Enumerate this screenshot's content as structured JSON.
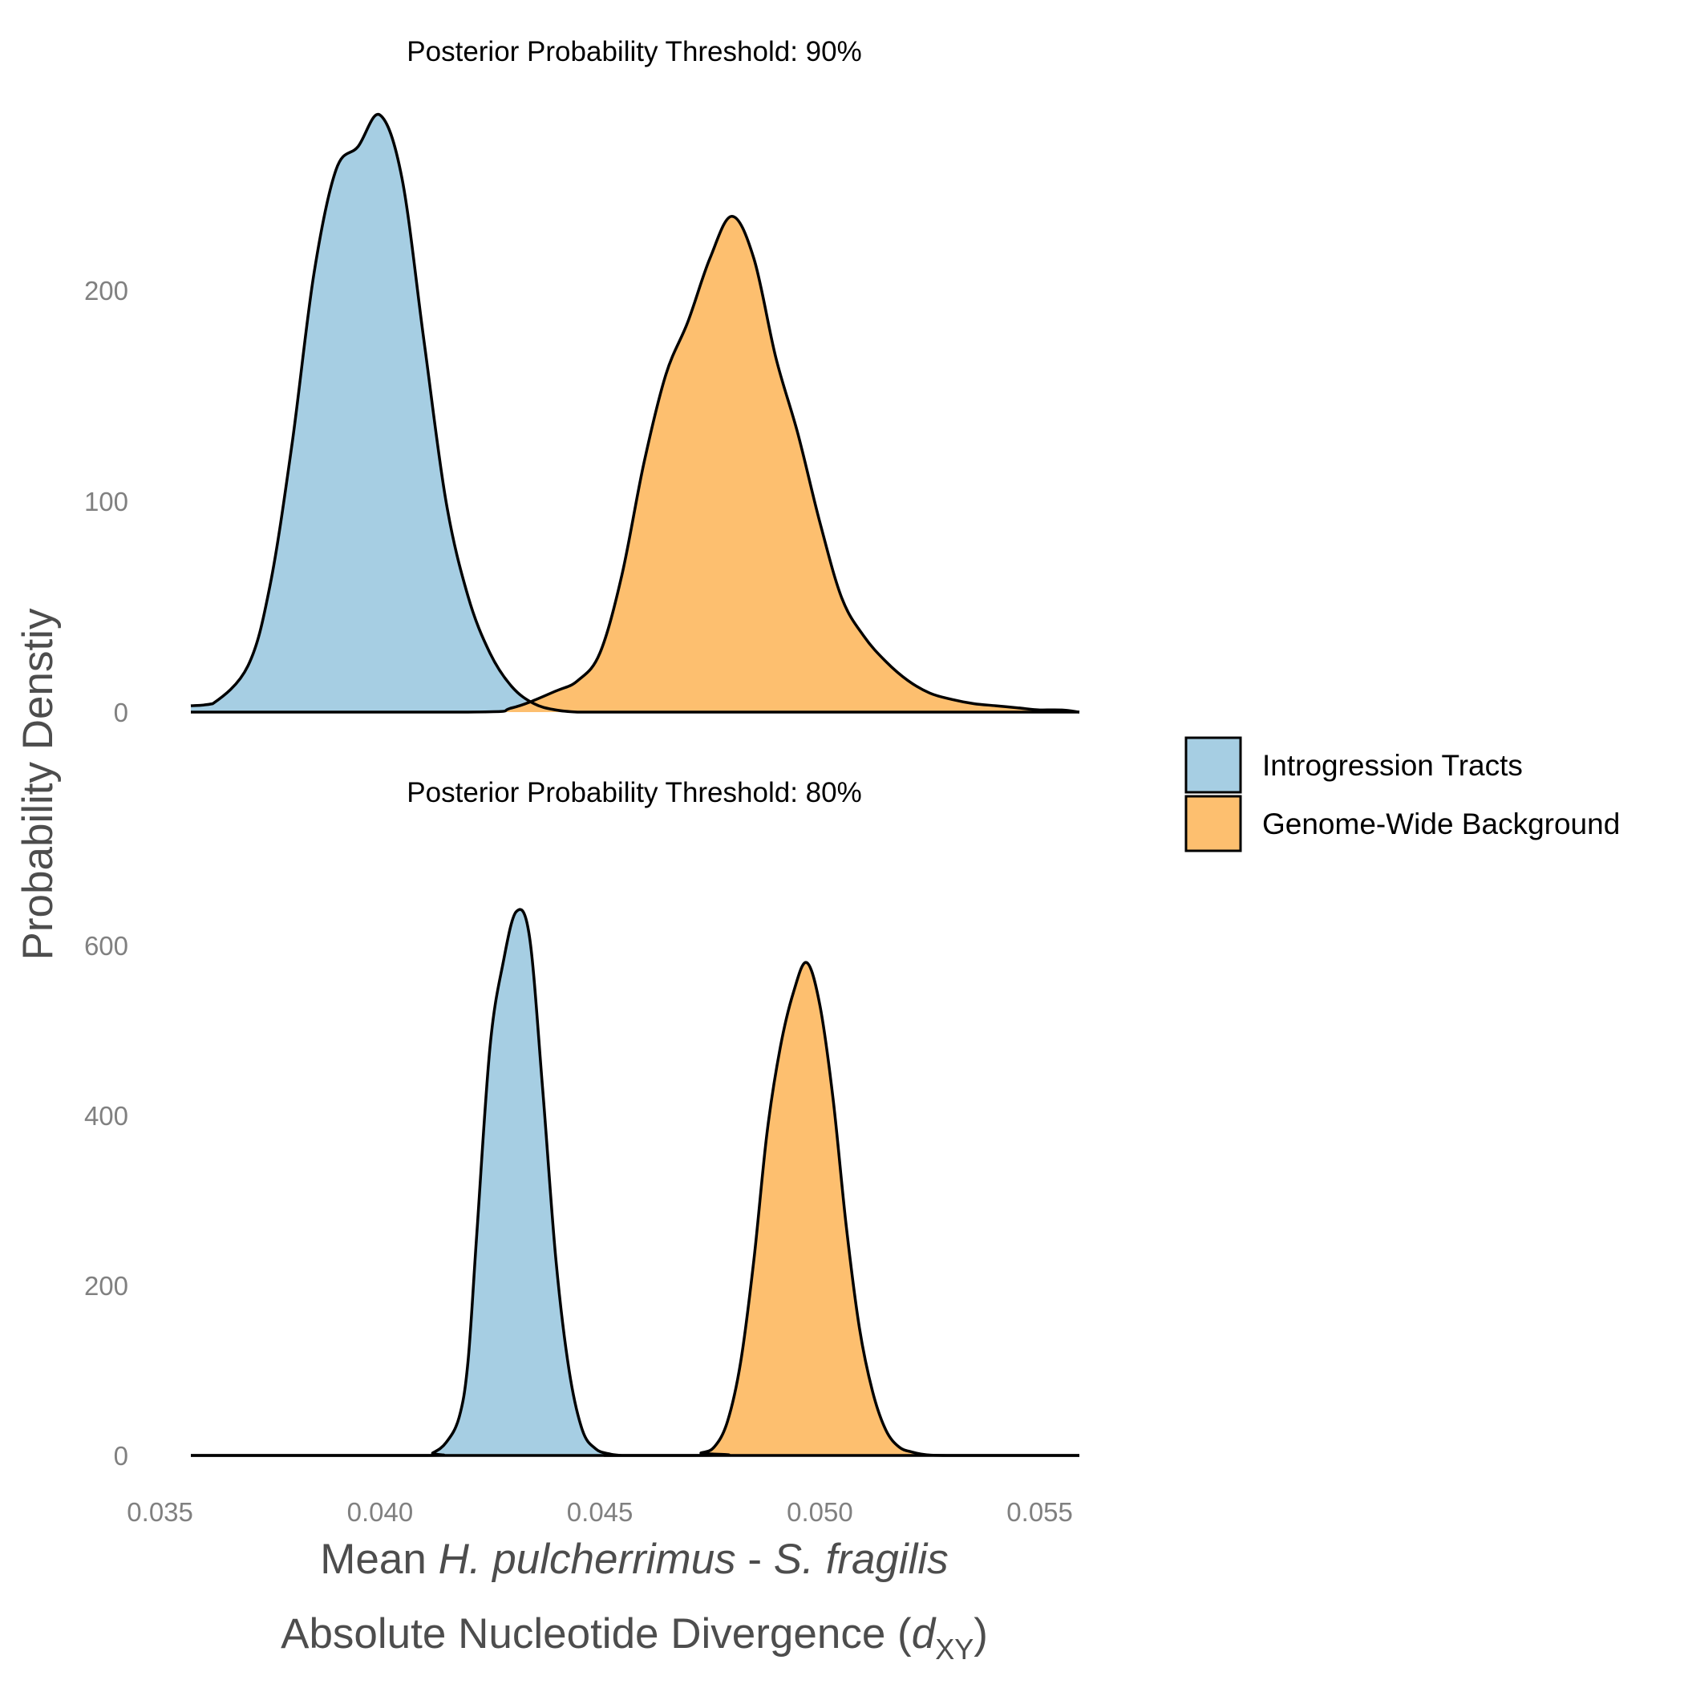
{
  "chart_data": {
    "type": "area",
    "chart_kind": "density",
    "x_axis": {
      "range": [
        0.0357,
        0.0559
      ],
      "ticks": [
        "0.035",
        "0.040",
        "0.045",
        "0.050",
        "0.055"
      ],
      "tick_values": [
        0.035,
        0.04,
        0.045,
        0.05,
        0.055
      ],
      "label_prefix": "Mean ",
      "label_species_1": "H. pulcherrimus",
      "label_sep": " - ",
      "label_species_2": "S. fragilis",
      "label_line2": "Absolute Nucleotide Divergence (",
      "label_var": "d",
      "label_sub": "XY",
      "label_close": ")"
    },
    "ylabel": "Probability Denstiy",
    "legend": {
      "placement": "right",
      "entries": [
        {
          "name": "Introgression Tracts",
          "color": "#a6cee3"
        },
        {
          "name": "Genome-Wide Background",
          "color": "#fdbf6f"
        }
      ]
    },
    "grid": false,
    "panels": [
      {
        "title": "Posterior Probability Threshold: 90%",
        "ylim": [
          0,
          290
        ],
        "yticks": [
          0,
          100,
          200
        ],
        "ytick_labels": [
          "0",
          "100",
          "200"
        ],
        "series": [
          {
            "name": "Introgression Tracts",
            "color": "#a6cee3",
            "x": [
              0.0357,
              0.0362,
              0.037,
              0.0375,
              0.038,
              0.0385,
              0.039,
              0.0395,
              0.04,
              0.0405,
              0.041,
              0.0415,
              0.042,
              0.0425,
              0.043,
              0.0435,
              0.044,
              0.0445,
              0.045,
              0.046,
              0.047,
              0.0559
            ],
            "y": [
              3,
              4,
              22,
              60,
              127,
              208,
              257,
              268,
              283,
              253,
              176,
              100,
              55,
              28,
              12,
              4,
              1,
              0,
              0,
              0,
              0,
              0
            ]
          },
          {
            "name": "Genome-Wide Background",
            "color": "#fdbf6f",
            "x": [
              0.0357,
              0.042,
              0.043,
              0.044,
              0.0445,
              0.045,
              0.0455,
              0.046,
              0.0465,
              0.047,
              0.0475,
              0.048,
              0.0485,
              0.049,
              0.0495,
              0.05,
              0.0505,
              0.051,
              0.0515,
              0.052,
              0.0525,
              0.053,
              0.0535,
              0.054,
              0.0545,
              0.055,
              0.0555,
              0.0559
            ],
            "y": [
              0,
              0,
              2,
              10,
              15,
              28,
              65,
              118,
              160,
              185,
              215,
              235,
              215,
              168,
              132,
              90,
              54,
              36,
              24,
              15,
              9,
              6,
              4,
              3,
              2,
              1,
              1,
              0
            ]
          }
        ]
      },
      {
        "title": "Posterior Probability Threshold: 80%",
        "ylim": [
          0,
          720
        ],
        "yticks": [
          0,
          200,
          400,
          600
        ],
        "ytick_labels": [
          "0",
          "200",
          "400",
          "600"
        ],
        "series": [
          {
            "name": "Introgression Tracts",
            "color": "#a6cee3",
            "x": [
              0.0357,
              0.041,
              0.0412,
              0.0415,
              0.0418,
              0.042,
              0.0422,
              0.0425,
              0.0428,
              0.0431,
              0.0434,
              0.0437,
              0.044,
              0.0443,
              0.0446,
              0.0449,
              0.0452,
              0.0455,
              0.046,
              0.0559
            ],
            "y": [
              0,
              0,
              3,
              15,
              45,
              110,
              260,
              480,
              580,
              640,
              610,
              430,
              230,
              100,
              30,
              8,
              2,
              0,
              0,
              0
            ]
          },
          {
            "name": "Genome-Wide Background",
            "color": "#fdbf6f",
            "x": [
              0.0357,
              0.047,
              0.0473,
              0.0476,
              0.0479,
              0.0482,
              0.0485,
              0.0488,
              0.0491,
              0.0494,
              0.0497,
              0.05,
              0.0503,
              0.0506,
              0.0509,
              0.0512,
              0.0515,
              0.0518,
              0.0521,
              0.0524,
              0.053,
              0.0559
            ],
            "y": [
              0,
              0,
              3,
              10,
              40,
              110,
              230,
              380,
              480,
              545,
              580,
              530,
              420,
              270,
              150,
              75,
              30,
              10,
              4,
              1,
              0,
              0
            ]
          }
        ]
      }
    ]
  }
}
